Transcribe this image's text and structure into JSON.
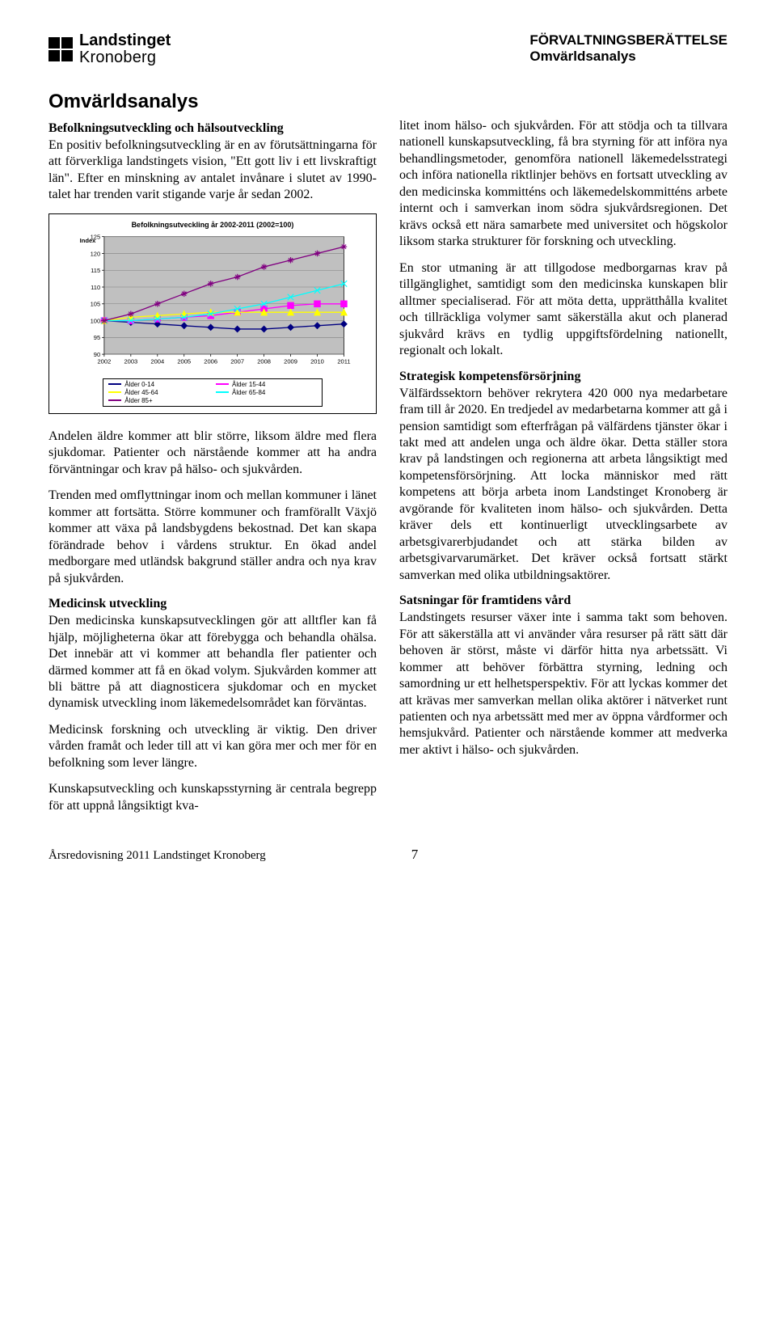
{
  "header": {
    "logo_line1": "Landstinget",
    "logo_line2": "Kronoberg",
    "meta_line1": "FÖRVALTNINGSBERÄTTELSE",
    "meta_line2": "Omvärldsanalys"
  },
  "title": "Omvärldsanalys",
  "left_col": {
    "h_befolk": "Befolkningsutveckling och hälsoutveckling",
    "p1": "En positiv befolkningsutveckling är en av förutsättningarna för att förverkliga landstingets vision, \"Ett gott liv i ett livskraftigt län\". Efter en minskning av antalet invånare i slutet av 1990-talet har trenden varit stigande varje år sedan 2002.",
    "p2": "Andelen äldre kommer att blir större, liksom äldre med flera sjukdomar. Patienter och närstående kommer att ha andra förväntningar och krav på hälso- och sjukvården.",
    "p3": "Trenden med omflyttningar inom och mellan kommuner i länet kommer att fortsätta. Större kommuner och framförallt Växjö kommer att växa på landsbygdens bekostnad. Det kan skapa förändrade behov i vårdens struktur. En ökad andel medborgare med utländsk bakgrund ställer andra och nya krav på sjukvården.",
    "h_med": "Medicinsk utveckling",
    "p4": "Den medicinska kunskapsutvecklingen gör att alltfler kan få hjälp, möjligheterna ökar att förebygga och behandla ohälsa. Det innebär att vi kommer att behandla fler patienter och därmed kommer att få en ökad volym. Sjukvården kommer att bli bättre på att diagnosticera sjukdomar och en mycket dynamisk utveckling inom läkemedelsområdet kan förväntas.",
    "p5": "Medicinsk forskning och utveckling är viktig. Den driver vården framåt och leder till att vi kan göra mer och mer för en befolkning som lever längre.",
    "p6": "Kunskapsutveckling och kunskapsstyrning är centrala begrepp för att uppnå långsiktigt kva-"
  },
  "right_col": {
    "p1": "litet inom hälso- och sjukvården. För att stödja och ta tillvara nationell kunskapsutveckling, få bra styrning för att införa nya behandlingsmetoder, genomföra nationell läkemedelsstrategi och införa nationella riktlinjer behövs en fortsatt utveckling av den medicinska kommitténs och läkemedelskommitténs arbete internt och i samverkan inom södra sjukvårdsregionen. Det krävs också ett nära samarbete med universitet och högskolor liksom starka strukturer för forskning och utveckling.",
    "p2": "En stor utmaning är att tillgodose medborgarnas krav på tillgänglighet, samtidigt som den medicinska kunskapen blir alltmer specialiserad. För att möta detta, upprätthålla kvalitet och tillräckliga volymer samt säkerställa akut och planerad sjukvård krävs en tydlig uppgiftsfördelning nationellt, regionalt och lokalt.",
    "h_komp": "Strategisk kompetensförsörjning",
    "p3": "Välfärdssektorn behöver rekrytera 420 000 nya medarbetare fram till år 2020. En tredjedel av medarbetarna kommer att gå i pension samtidigt som efterfrågan på välfärdens tjänster ökar i takt med att andelen unga och äldre ökar. Detta ställer stora krav på landstingen och regionerna att arbeta långsiktigt med kompetensförsörjning. Att locka människor med rätt kompetens att börja arbeta inom Landstinget Kronoberg är avgörande för kvaliteten inom hälso- och sjukvården. Detta kräver dels ett kontinuerligt utvecklingsarbete av arbetsgivarerbjudandet och att stärka bilden av arbetsgivarvarumärket. Det kräver också fortsatt stärkt samverkan med olika utbildningsaktörer.",
    "h_sats": "Satsningar för framtidens vård",
    "p4": "Landstingets resurser växer inte i samma takt som behoven. För att säkerställa att vi använder våra resurser på rätt sätt där behoven är störst, måste vi därför hitta nya arbetssätt. Vi kommer att behöver förbättra styrning, ledning och samordning ur ett helhetsperspektiv. För att lyckas kommer det att krävas mer samverkan mellan olika aktörer i nätverket runt patienten och nya arbetssätt med mer av öppna vårdformer och hemsjukvård. Patienter och närstående kommer att medverka mer aktivt i hälso- och sjukvården."
  },
  "chart": {
    "title": "Befolkningsutveckling år 2002-2011 (2002=100)",
    "ylabel": "Index",
    "ylabel_fontsize": 8,
    "xlim": [
      2002,
      2011
    ],
    "ylim": [
      90,
      125
    ],
    "ytick_step": 5,
    "xtick_step": 1,
    "grid_color": "#808080",
    "plot_bg": "#c0c0c0",
    "axis_fontsize": 8,
    "line_width": 1.4,
    "marker_size": 4,
    "series": [
      {
        "name": "Ålder 0-14",
        "color": "#000080",
        "marker": "diamond",
        "values": [
          100,
          99.5,
          99,
          98.5,
          98,
          97.5,
          97.5,
          98,
          98.5,
          99
        ]
      },
      {
        "name": "Ålder 15-44",
        "color": "#ff00ff",
        "marker": "square",
        "values": [
          100,
          100,
          100.5,
          101,
          101.5,
          102.5,
          103.5,
          104.5,
          105,
          105
        ]
      },
      {
        "name": "Ålder 45-64",
        "color": "#ffff00",
        "marker": "triangle",
        "values": [
          100,
          101,
          101.5,
          102,
          102.5,
          102.5,
          102.5,
          102.5,
          102.5,
          102.5
        ]
      },
      {
        "name": "Ålder 65-84",
        "color": "#00ffff",
        "marker": "x",
        "values": [
          100,
          100,
          100.5,
          101,
          102,
          103.5,
          105,
          107,
          109,
          111
        ]
      },
      {
        "name": "Ålder 85+",
        "color": "#800080",
        "marker": "star",
        "values": [
          100,
          102,
          105,
          108,
          111,
          113,
          116,
          118,
          120,
          122
        ]
      }
    ]
  },
  "footer": {
    "text": "Årsredovisning 2011 Landstinget Kronoberg",
    "page": "7"
  },
  "colors": {
    "text": "#000000",
    "bg": "#ffffff"
  }
}
